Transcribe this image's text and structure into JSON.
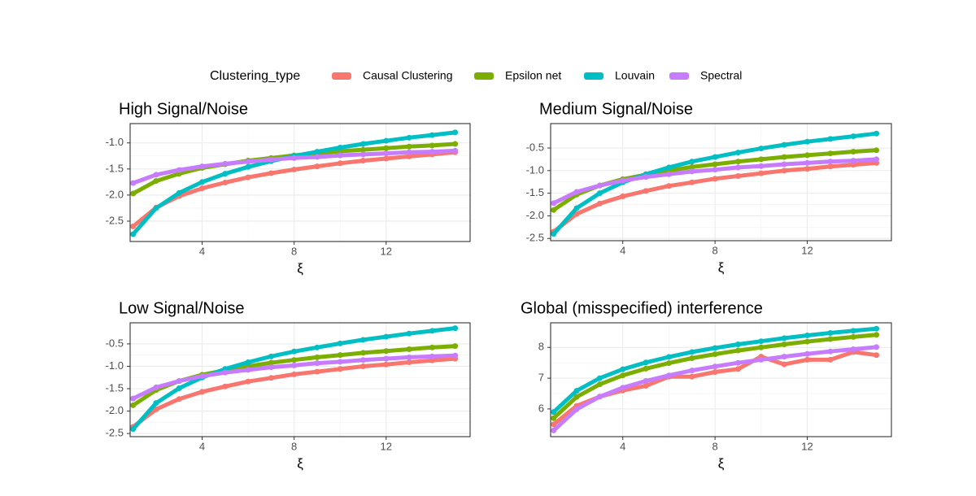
{
  "legend": {
    "title": "Clustering_type"
  },
  "chart_data": [
    {
      "type": "line",
      "title": "High Signal/Noise",
      "x_label": "ξ",
      "x": [
        1,
        2,
        3,
        4,
        5,
        6,
        7,
        8,
        9,
        10,
        11,
        12,
        13,
        14,
        15
      ],
      "xlim": [
        0.87,
        15.65
      ],
      "xticks": [
        4,
        8,
        12
      ],
      "ylim": [
        -2.89,
        -0.63
      ],
      "yticks": [
        {
          "value": -2.5,
          "label": "-2.5"
        },
        {
          "value": -2,
          "label": "-2.0"
        },
        {
          "value": -1.5,
          "label": "-1.5"
        },
        {
          "value": -1,
          "label": "-1.0"
        }
      ],
      "grid": true,
      "series": [
        {
          "name": "Causal Clustering",
          "color": "#F8766D",
          "values": [
            -2.6,
            -2.24,
            -2.02,
            -1.87,
            -1.76,
            -1.66,
            -1.58,
            -1.51,
            -1.45,
            -1.39,
            -1.34,
            -1.3,
            -1.26,
            -1.22,
            -1.18
          ]
        },
        {
          "name": "Epsilon net",
          "color": "#7CAE00",
          "values": [
            -1.97,
            -1.73,
            -1.59,
            -1.48,
            -1.41,
            -1.34,
            -1.29,
            -1.24,
            -1.2,
            -1.16,
            -1.13,
            -1.1,
            -1.07,
            -1.05,
            -1.02
          ]
        },
        {
          "name": "Louvain",
          "color": "#00BFC4",
          "values": [
            -2.75,
            -2.25,
            -1.96,
            -1.75,
            -1.59,
            -1.46,
            -1.35,
            -1.25,
            -1.17,
            -1.09,
            -1.02,
            -0.96,
            -0.9,
            -0.85,
            -0.8
          ]
        },
        {
          "name": "Spectral",
          "color": "#C77CFF",
          "values": [
            -1.77,
            -1.61,
            -1.52,
            -1.45,
            -1.4,
            -1.36,
            -1.32,
            -1.29,
            -1.27,
            -1.24,
            -1.22,
            -1.2,
            -1.18,
            -1.17,
            -1.15
          ]
        }
      ]
    },
    {
      "type": "line",
      "title": "Medium Signal/Noise",
      "x_label": "ξ",
      "x": [
        1,
        2,
        3,
        4,
        5,
        6,
        7,
        8,
        9,
        10,
        11,
        12,
        13,
        14,
        15
      ],
      "xlim": [
        0.87,
        15.65
      ],
      "xticks": [
        4,
        8,
        12
      ],
      "ylim": [
        -2.55,
        0.04
      ],
      "yticks": [
        -2.5,
        {
          "value": -2,
          "label": "-2.0"
        },
        -1.5,
        {
          "value": -1,
          "label": "-1.0"
        },
        -0.5
      ],
      "grid": true,
      "series": [
        {
          "name": "Causal Clustering",
          "color": "#F8766D",
          "values": [
            -2.35,
            -1.96,
            -1.73,
            -1.57,
            -1.45,
            -1.34,
            -1.26,
            -1.18,
            -1.12,
            -1.06,
            -1.0,
            -0.96,
            -0.91,
            -0.87,
            -0.83
          ]
        },
        {
          "name": "Epsilon net",
          "color": "#7CAE00",
          "values": [
            -1.87,
            -1.53,
            -1.33,
            -1.19,
            -1.09,
            -1.0,
            -0.92,
            -0.86,
            -0.8,
            -0.75,
            -0.7,
            -0.66,
            -0.62,
            -0.58,
            -0.55
          ]
        },
        {
          "name": "Louvain",
          "color": "#00BFC4",
          "values": [
            -2.4,
            -1.83,
            -1.5,
            -1.26,
            -1.08,
            -0.93,
            -0.8,
            -0.7,
            -0.6,
            -0.51,
            -0.43,
            -0.36,
            -0.3,
            -0.24,
            -0.18
          ]
        },
        {
          "name": "Spectral",
          "color": "#C77CFF",
          "values": [
            -1.72,
            -1.47,
            -1.33,
            -1.22,
            -1.14,
            -1.08,
            -1.02,
            -0.98,
            -0.93,
            -0.9,
            -0.86,
            -0.83,
            -0.8,
            -0.78,
            -0.75
          ]
        }
      ]
    },
    {
      "type": "line",
      "title": "Low Signal/Noise",
      "x_label": "ξ",
      "x": [
        1,
        2,
        3,
        4,
        5,
        6,
        7,
        8,
        9,
        10,
        11,
        12,
        13,
        14,
        15
      ],
      "xlim": [
        0.87,
        15.65
      ],
      "xticks": [
        4,
        8,
        12
      ],
      "ylim": [
        -2.57,
        -0.03
      ],
      "yticks": [
        -2.5,
        {
          "value": -2,
          "label": "-2.0"
        },
        -1.5,
        {
          "value": -1,
          "label": "-1.0"
        },
        -0.5
      ],
      "grid": true,
      "series": [
        {
          "name": "Causal Clustering",
          "color": "#F8766D",
          "values": [
            -2.35,
            -1.96,
            -1.73,
            -1.57,
            -1.45,
            -1.34,
            -1.26,
            -1.18,
            -1.12,
            -1.06,
            -1.0,
            -0.96,
            -0.91,
            -0.87,
            -0.83
          ]
        },
        {
          "name": "Epsilon net",
          "color": "#7CAE00",
          "values": [
            -1.87,
            -1.53,
            -1.33,
            -1.19,
            -1.09,
            -1.0,
            -0.92,
            -0.86,
            -0.8,
            -0.75,
            -0.7,
            -0.66,
            -0.62,
            -0.58,
            -0.55
          ]
        },
        {
          "name": "Louvain",
          "color": "#00BFC4",
          "values": [
            -2.4,
            -1.82,
            -1.49,
            -1.25,
            -1.06,
            -0.91,
            -0.78,
            -0.67,
            -0.58,
            -0.49,
            -0.41,
            -0.34,
            -0.27,
            -0.21,
            -0.15
          ]
        },
        {
          "name": "Spectral",
          "color": "#C77CFF",
          "values": [
            -1.72,
            -1.47,
            -1.33,
            -1.22,
            -1.14,
            -1.08,
            -1.02,
            -0.98,
            -0.93,
            -0.9,
            -0.86,
            -0.83,
            -0.8,
            -0.78,
            -0.76
          ]
        }
      ]
    },
    {
      "type": "line",
      "title": "Global (misspecified) interference",
      "x_label": "ξ",
      "x": [
        1,
        2,
        3,
        4,
        5,
        6,
        7,
        8,
        9,
        10,
        11,
        12,
        13,
        14,
        15
      ],
      "xlim": [
        0.87,
        15.65
      ],
      "xticks": [
        4,
        8,
        12
      ],
      "ylim": [
        5.1,
        8.8
      ],
      "yticks": [
        6,
        7,
        8
      ],
      "grid": true,
      "series": [
        {
          "name": "Causal Clustering",
          "color": "#F8766D",
          "values": [
            5.5,
            6.1,
            6.4,
            6.6,
            6.75,
            7.05,
            7.05,
            7.2,
            7.3,
            7.7,
            7.45,
            7.6,
            7.6,
            7.85,
            7.75
          ]
        },
        {
          "name": "Epsilon net",
          "color": "#7CAE00",
          "values": [
            5.7,
            6.39,
            6.8,
            7.09,
            7.31,
            7.49,
            7.65,
            7.78,
            7.9,
            8.0,
            8.1,
            8.19,
            8.27,
            8.34,
            8.41
          ]
        },
        {
          "name": "Louvain",
          "color": "#00BFC4",
          "values": [
            5.9,
            6.59,
            7.0,
            7.29,
            7.51,
            7.69,
            7.85,
            7.98,
            8.1,
            8.2,
            8.3,
            8.39,
            8.47,
            8.54,
            8.61
          ]
        },
        {
          "name": "Spectral",
          "color": "#C77CFF",
          "values": [
            5.3,
            5.99,
            6.4,
            6.69,
            6.91,
            7.09,
            7.25,
            7.38,
            7.5,
            7.6,
            7.7,
            7.79,
            7.87,
            7.94,
            8.01
          ]
        }
      ]
    }
  ]
}
